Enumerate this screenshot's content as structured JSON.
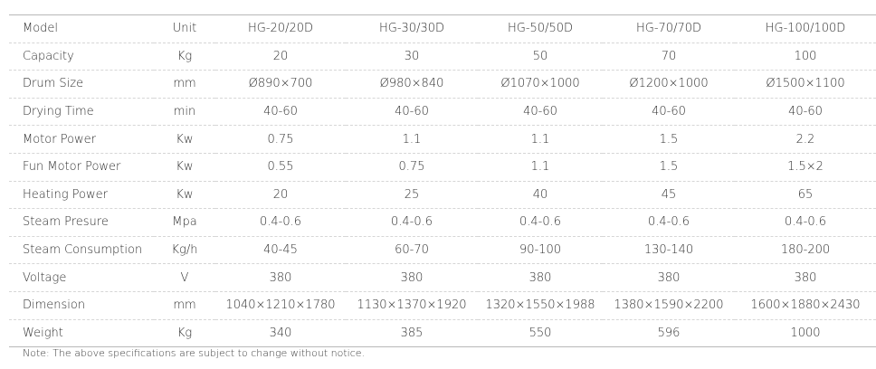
{
  "table": {
    "headers": [
      "Model",
      "Unit",
      "HG-20/20D",
      "HG-30/30D",
      "HG-50/50D",
      "HG-70/70D",
      "HG-100/100D"
    ],
    "rows": [
      [
        "Capacity",
        "Kg",
        "20",
        "30",
        "50",
        "70",
        "100"
      ],
      [
        "Drum Size",
        "mm",
        "Ø890×700",
        "Ø980×840",
        "Ø1070×1000",
        "Ø1200×1000",
        "Ø1500×1100"
      ],
      [
        "Drying Time",
        "min",
        "40-60",
        "40-60",
        "40-60",
        "40-60",
        "40-60"
      ],
      [
        "Motor Power",
        "Kw",
        "0.75",
        "1.1",
        "1.1",
        "1.5",
        "2.2"
      ],
      [
        "Fun Motor Power",
        "Kw",
        "0.55",
        "0.75",
        "1.1",
        "1.5",
        "1.5×2"
      ],
      [
        "Heating Power",
        "Kw",
        "20",
        "25",
        "40",
        "45",
        "65"
      ],
      [
        "Steam Presure",
        "Mpa",
        "0.4-0.6",
        "0.4-0.6",
        "0.4-0.6",
        "0.4-0.6",
        "0.4-0.6"
      ],
      [
        "Steam Consumption",
        "Kg/h",
        "40-45",
        "60-70",
        "90-100",
        "130-140",
        "180-200"
      ],
      [
        "Voltage",
        "V",
        "380",
        "380",
        "380",
        "380",
        "380"
      ],
      [
        "Dimension",
        "mm",
        "1040×1210×1780",
        "1130×1370×1920",
        "1320×1550×1988",
        "1380×1590×2200",
        "1600×1880×2430"
      ],
      [
        "Weight",
        "Kg",
        "340",
        "385",
        "550",
        "596",
        "1000"
      ]
    ]
  },
  "note": "Note: The above specifications are subject to change without notice."
}
